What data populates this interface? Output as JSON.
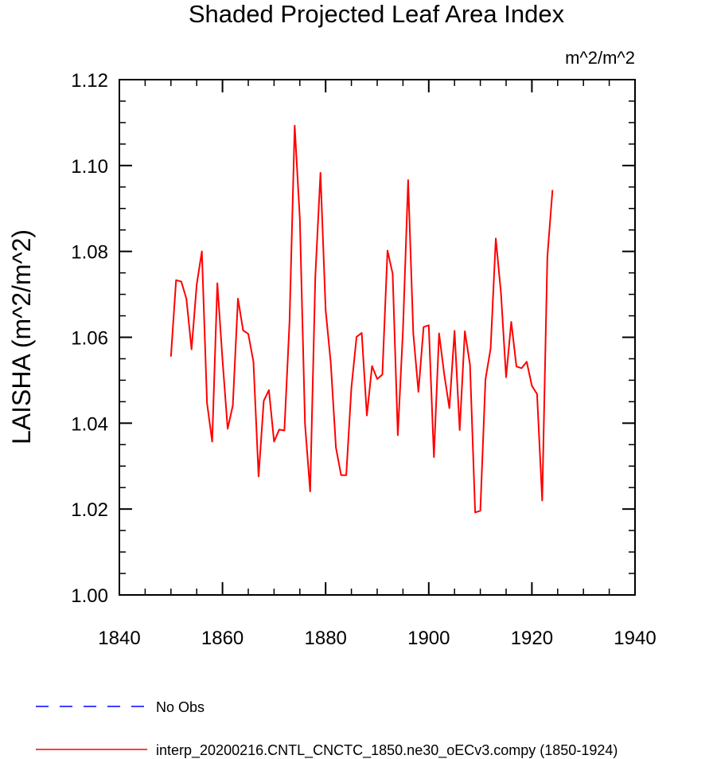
{
  "chart_data": {
    "type": "line",
    "title": "Shaded Projected Leaf Area Index",
    "units": "m^2/m^2",
    "xlabel": "",
    "ylabel": "LAISHA  (m^2/m^2)",
    "xlim": [
      1840,
      1940
    ],
    "ylim": [
      1.0,
      1.12
    ],
    "x_ticks": [
      1840,
      1860,
      1880,
      1900,
      1920,
      1940
    ],
    "y_ticks": [
      1.0,
      1.02,
      1.04,
      1.06,
      1.08,
      1.1,
      1.12
    ],
    "x_tick_labels": [
      "1840",
      "1860",
      "1880",
      "1900",
      "1920",
      "1940"
    ],
    "y_tick_labels": [
      "1.00",
      "1.02",
      "1.04",
      "1.06",
      "1.08",
      "1.10",
      "1.12"
    ],
    "x_minor_step": 5,
    "y_minor_step": 0.005,
    "grid": false,
    "legend_position": "bottom",
    "legend": [
      {
        "label": "No Obs",
        "color": "#0000ff",
        "style": "dashed"
      },
      {
        "label": "interp_20200216.CNTL_CNCTC_1850.ne30_oECv3.compy (1850-1924)",
        "color": "#ff0000",
        "style": "solid"
      }
    ],
    "series": [
      {
        "name": "interp_20200216.CNTL_CNCTC_1850.ne30_oECv3.compy (1850-1924)",
        "color": "#ff0000",
        "x": [
          1850,
          1851,
          1852,
          1853,
          1854,
          1855,
          1856,
          1857,
          1858,
          1859,
          1860,
          1861,
          1862,
          1863,
          1864,
          1865,
          1866,
          1867,
          1868,
          1869,
          1870,
          1871,
          1872,
          1873,
          1874,
          1875,
          1876,
          1877,
          1878,
          1879,
          1880,
          1881,
          1882,
          1883,
          1884,
          1885,
          1886,
          1887,
          1888,
          1889,
          1890,
          1891,
          1892,
          1893,
          1894,
          1895,
          1896,
          1897,
          1898,
          1899,
          1900,
          1901,
          1902,
          1903,
          1904,
          1905,
          1906,
          1907,
          1908,
          1909,
          1910,
          1911,
          1912,
          1913,
          1914,
          1915,
          1916,
          1917,
          1918,
          1919,
          1920,
          1921,
          1922,
          1923,
          1924
        ],
        "y": [
          1.0555,
          1.0733,
          1.073,
          1.069,
          1.0572,
          1.0723,
          1.08,
          1.0447,
          1.0357,
          1.0726,
          1.0548,
          1.0387,
          1.0441,
          1.069,
          1.0616,
          1.0608,
          1.0543,
          1.0276,
          1.0452,
          1.0477,
          1.0357,
          1.0385,
          1.0383,
          1.0636,
          1.1093,
          1.0876,
          1.0399,
          1.0241,
          1.0741,
          1.0983,
          1.0664,
          1.054,
          1.0343,
          1.0279,
          1.0279,
          1.0483,
          1.0601,
          1.061,
          1.0418,
          1.0533,
          1.0503,
          1.0513,
          1.0802,
          1.0748,
          1.0372,
          1.0617,
          1.0966,
          1.0609,
          1.0473,
          1.0624,
          1.0628,
          1.0321,
          1.0609,
          1.0514,
          1.0435,
          1.0615,
          1.0384,
          1.0614,
          1.0536,
          1.0192,
          1.0196,
          1.0502,
          1.0574,
          1.083,
          1.0704,
          1.0507,
          1.0636,
          1.0532,
          1.0528,
          1.0543,
          1.0487,
          1.0468,
          1.022,
          1.0787,
          1.0943
        ]
      }
    ]
  }
}
